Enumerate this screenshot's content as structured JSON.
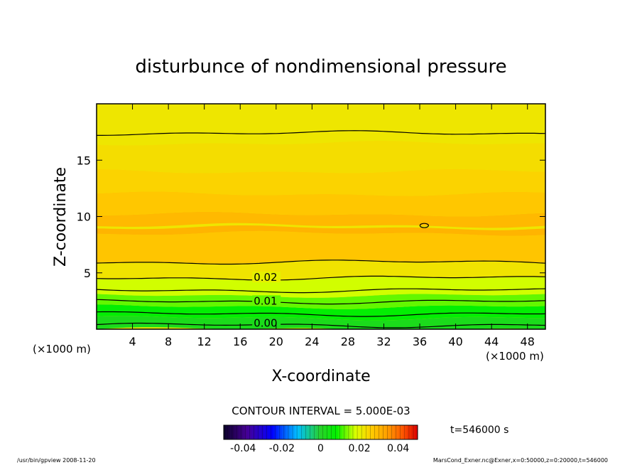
{
  "chart_data": {
    "type": "heatmap",
    "title": "disturbunce of nondimensional pressure",
    "xlabel": "X-coordinate",
    "ylabel": "Z-coordinate",
    "x_unit_left": "(×1000 m)",
    "x_unit_right": "(×1000 m)",
    "xlim": [
      0,
      50
    ],
    "ylim": [
      0,
      20
    ],
    "x_ticks": [
      4,
      8,
      12,
      16,
      20,
      24,
      28,
      32,
      36,
      40,
      44,
      48
    ],
    "y_ticks": [
      5,
      10,
      15
    ],
    "contour_interval": "CONTOUR INTERVAL = 5.000E-03",
    "contour_labels": [
      {
        "text": "0.02",
        "x": 17.5,
        "z": 4.6
      },
      {
        "text": "0.01",
        "x": 17.5,
        "z": 2.5
      },
      {
        "text": "0.00",
        "x": 17.5,
        "z": 0.55
      }
    ],
    "field_profile": [
      {
        "z": 0.0,
        "value": 0.0
      },
      {
        "z": 1.0,
        "value": 0.005
      },
      {
        "z": 2.0,
        "value": 0.01
      },
      {
        "z": 3.0,
        "value": 0.015
      },
      {
        "z": 4.5,
        "value": 0.02
      },
      {
        "z": 6.0,
        "value": 0.025
      },
      {
        "z": 7.5,
        "value": 0.028
      },
      {
        "z": 9.0,
        "value": 0.031
      },
      {
        "z": 10.5,
        "value": 0.029
      },
      {
        "z": 12.5,
        "value": 0.026
      },
      {
        "z": 15.0,
        "value": 0.024
      },
      {
        "z": 17.5,
        "value": 0.023
      },
      {
        "z": 20.0,
        "value": 0.022
      }
    ],
    "colorbar": {
      "range": [
        -0.05,
        0.05
      ],
      "tick_labels": [
        "-0.04",
        "-0.02",
        "0",
        "0.02",
        "0.04"
      ],
      "tick_values": [
        -0.04,
        -0.02,
        0,
        0.02,
        0.04
      ]
    },
    "time_label": "t=546000 s",
    "footer_left": "/usr/bin/gpview   2008-11-20",
    "footer_right": "MarsCond_Exner.nc@Exner,x=0:50000,z=0:20000,t=546000"
  }
}
